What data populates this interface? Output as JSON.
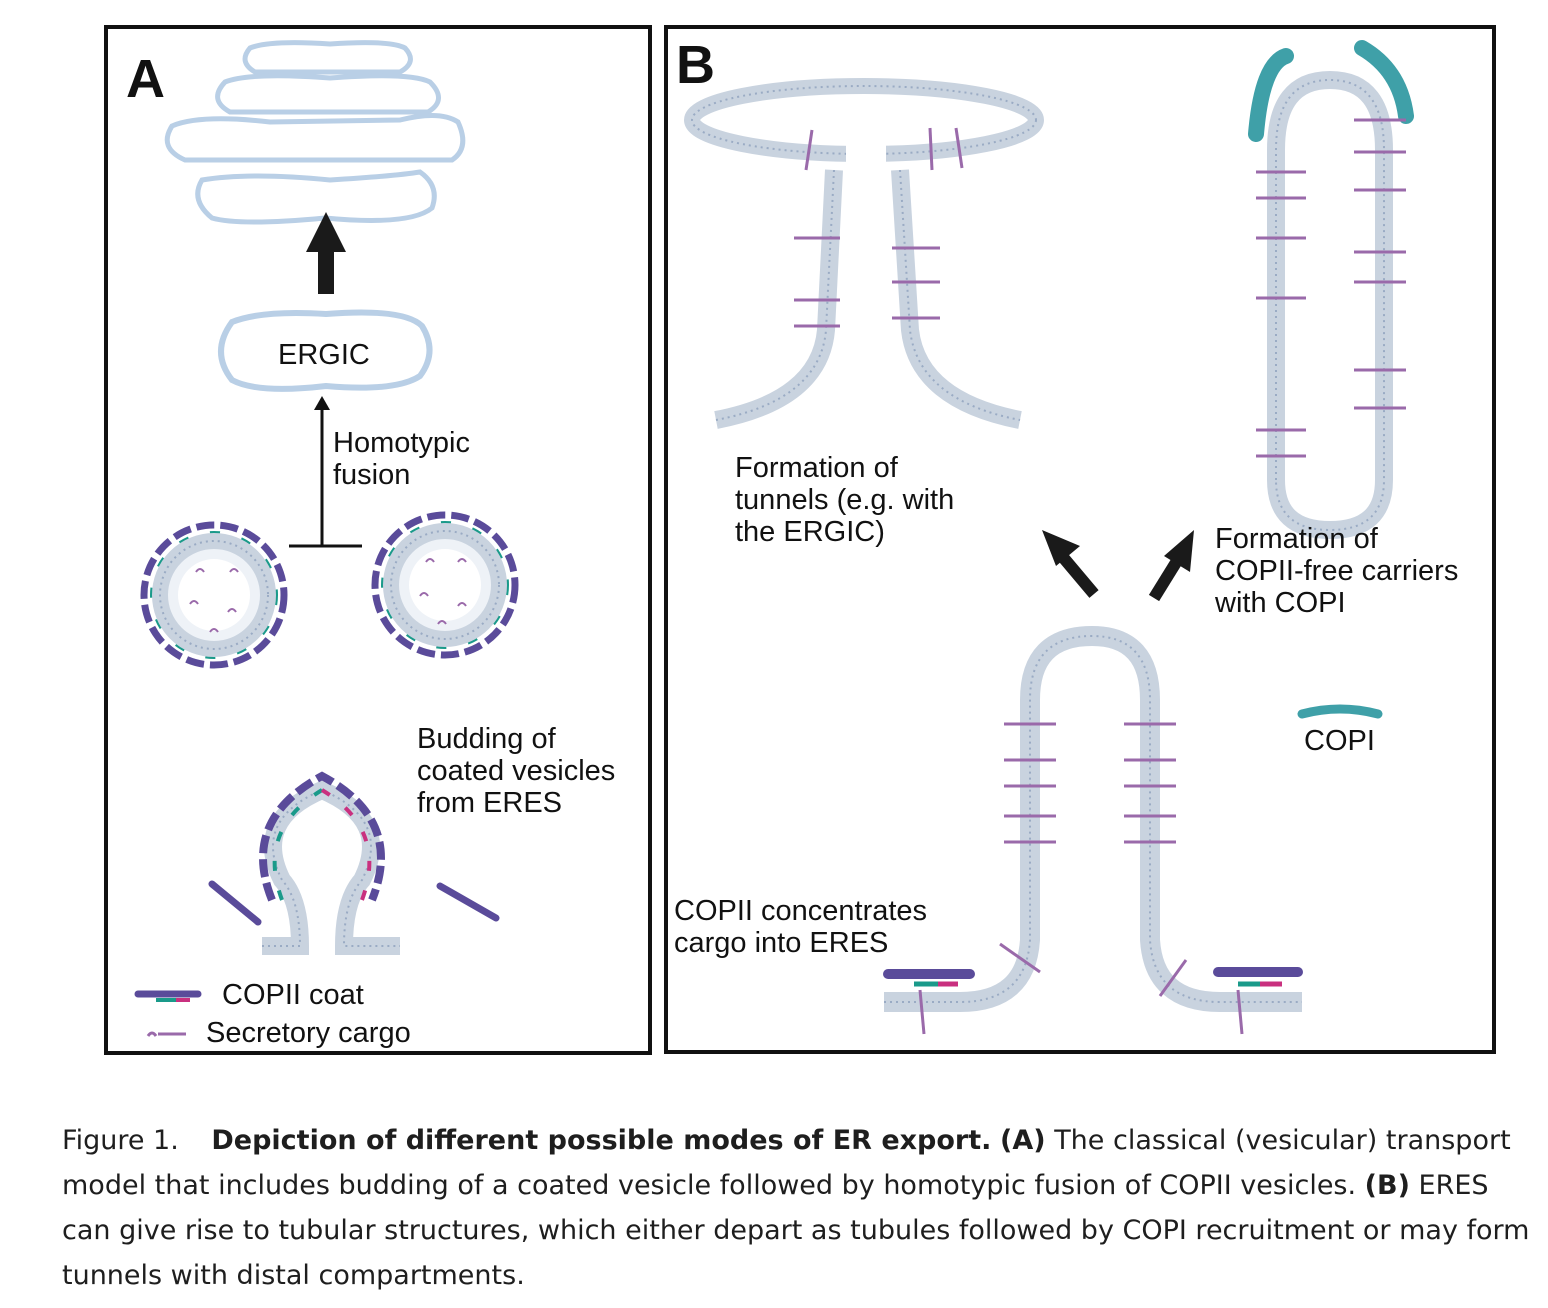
{
  "panel_a": {
    "letter": "A",
    "ergic_label": "ERGIC",
    "fusion_label": [
      "Homotypic",
      "fusion"
    ],
    "budding_label": [
      "Budding of",
      "coated vesicles",
      "from ERES"
    ],
    "legend": {
      "copii_coat": "COPII coat",
      "secretory_cargo": "Secretory cargo"
    }
  },
  "panel_b": {
    "letter": "B",
    "tunnels_label": [
      "Formation of",
      "tunnels (e.g. with",
      "the ERGIC)"
    ],
    "carriers_label": [
      "Formation of",
      "COPII-free carriers",
      "with COPI"
    ],
    "copi_label": "COPI",
    "concentrates_label": [
      "COPII concentrates",
      "cargo into ERES"
    ]
  },
  "caption": {
    "figure_number": "Figure 1.",
    "title": "Depiction of different possible modes of ER export.",
    "a_tag": "(A)",
    "a_text": "The classical (vesicular) transport model that includes budding of a coated vesicle followed by homotypic fusion of COPII vesicles.",
    "b_tag": "(B)",
    "b_text": "ERES can give rise to tubular structures, which either depart as tubules followed by COPI recruitment or may form tunnels with distal compartments."
  },
  "colors": {
    "membrane": "#c9d3df",
    "membrane_fill": "#eef2f7",
    "golgi_outline": "#b9cfe6",
    "copii_coat": "#5a4b9a",
    "copii_teal": "#1a9a8a",
    "copii_magenta": "#c9307f",
    "cargo": "#9a6aaa",
    "copi": "#3fa0a8",
    "arrow": "#1a1a1a"
  }
}
